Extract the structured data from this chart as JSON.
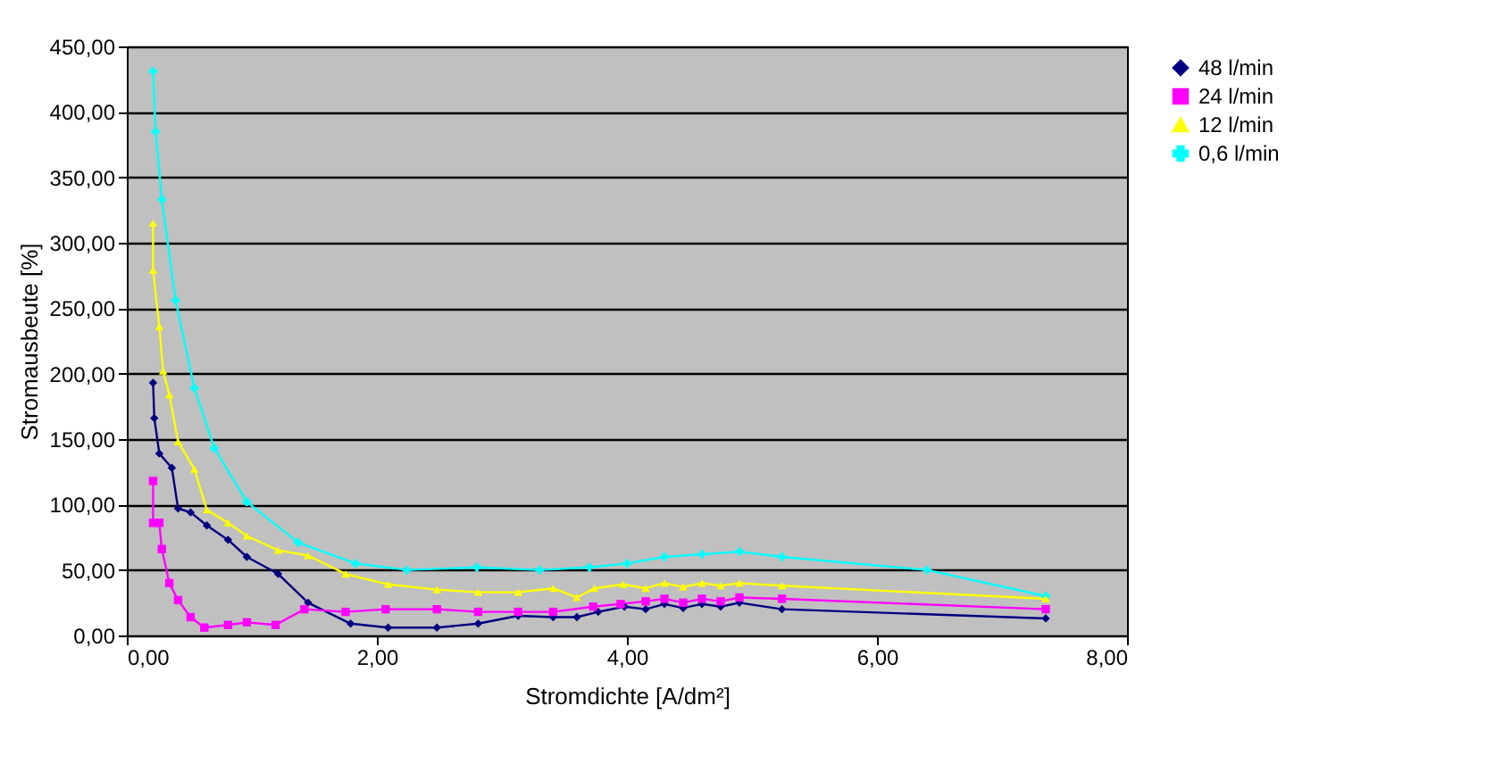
{
  "chart_data": {
    "type": "line",
    "xlabel": "Stromdichte [A/dm²]",
    "ylabel": "Stromausbeute [%]",
    "xlim": [
      0,
      8
    ],
    "xticks": [
      {
        "value": 0,
        "label": "0,00"
      },
      {
        "value": 2,
        "label": "2,00"
      },
      {
        "value": 4,
        "label": "4,00"
      },
      {
        "value": 6,
        "label": "6,00"
      },
      {
        "value": 8,
        "label": "8,00"
      }
    ],
    "ylim": [
      0,
      450
    ],
    "yticks": [
      {
        "value": 0,
        "label": "0,00"
      },
      {
        "value": 50,
        "label": "50,00"
      },
      {
        "value": 100,
        "label": "100,00"
      },
      {
        "value": 150,
        "label": "150,00"
      },
      {
        "value": 200,
        "label": "200,00"
      },
      {
        "value": 250,
        "label": "250,00"
      },
      {
        "value": 300,
        "label": "300,00"
      },
      {
        "value": 350,
        "label": "350,00"
      },
      {
        "value": 400,
        "label": "400,00"
      },
      {
        "value": 450,
        "label": "450,00"
      }
    ],
    "grid": "y",
    "legend": "right",
    "series": [
      {
        "name": "48 l/min",
        "color": "#000080",
        "marker": "diamond",
        "x": [
          0.21,
          0.22,
          0.26,
          0.36,
          0.41,
          0.51,
          0.64,
          0.81,
          0.96,
          1.21,
          1.45,
          1.79,
          2.09,
          2.48,
          2.81,
          3.13,
          3.41,
          3.6,
          3.77,
          3.98,
          4.15,
          4.3,
          4.45,
          4.6,
          4.75,
          4.9,
          5.24,
          7.35
        ],
        "values": [
          193,
          166,
          139,
          128,
          97,
          94,
          84,
          73,
          60,
          47,
          25,
          9,
          6,
          6,
          9,
          15,
          14,
          14,
          18,
          22,
          20,
          24,
          21,
          24,
          22,
          25,
          20,
          13
        ]
      },
      {
        "name": "24 l/min",
        "color": "#ff00ff",
        "marker": "square",
        "x": [
          0.21,
          0.21,
          0.26,
          0.28,
          0.34,
          0.41,
          0.51,
          0.62,
          0.81,
          0.96,
          1.19,
          1.42,
          1.75,
          2.07,
          2.48,
          2.81,
          3.13,
          3.41,
          3.73,
          3.95,
          4.15,
          4.3,
          4.45,
          4.6,
          4.75,
          4.9,
          5.24,
          7.35
        ],
        "values": [
          118,
          86,
          86,
          66,
          40,
          27,
          14,
          6,
          8,
          10,
          8,
          20,
          18,
          20,
          20,
          18,
          18,
          18,
          22,
          24,
          26,
          28,
          25,
          28,
          26,
          29,
          28,
          20
        ]
      },
      {
        "name": "12 l/min",
        "color": "#ffff00",
        "marker": "triangle",
        "x": [
          0.21,
          0.21,
          0.26,
          0.29,
          0.34,
          0.41,
          0.54,
          0.64,
          0.81,
          0.96,
          1.21,
          1.45,
          1.75,
          2.09,
          2.48,
          2.81,
          3.13,
          3.41,
          3.6,
          3.74,
          3.97,
          4.15,
          4.3,
          4.45,
          4.6,
          4.75,
          4.9,
          5.24,
          7.35
        ],
        "values": [
          315,
          279,
          236,
          202,
          184,
          148,
          127,
          96,
          86,
          76,
          65,
          61,
          47,
          39,
          35,
          33,
          33,
          36,
          29,
          36,
          39,
          36,
          40,
          37,
          40,
          38,
          40,
          38,
          28
        ]
      },
      {
        "name": "0,6 l/min",
        "color": "#00ffff",
        "marker": "cross",
        "x": [
          0.21,
          0.23,
          0.28,
          0.39,
          0.54,
          0.7,
          0.96,
          1.37,
          1.83,
          2.24,
          2.8,
          3.3,
          3.7,
          4.0,
          4.3,
          4.6,
          4.9,
          5.24,
          6.4,
          7.35
        ],
        "values": [
          431,
          385,
          333,
          256,
          189,
          143,
          102,
          71,
          55,
          50,
          52,
          50,
          52,
          55,
          60,
          62,
          64,
          60,
          50,
          30
        ]
      }
    ]
  }
}
